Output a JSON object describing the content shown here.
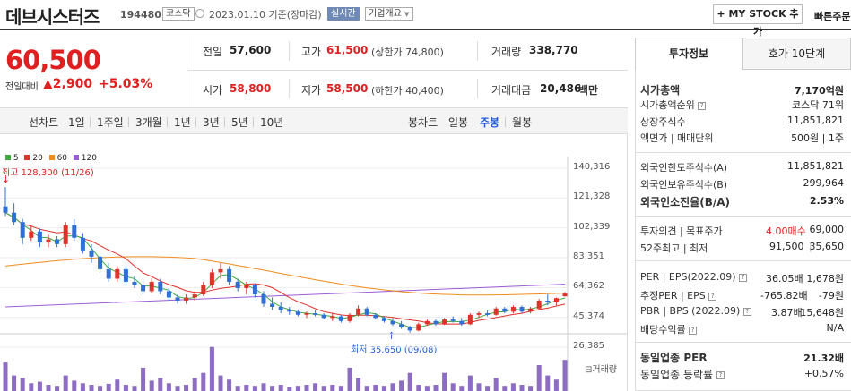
{
  "header": {
    "stock_name": "데브시스터즈",
    "stock_code": "194480",
    "market_badge": "코스닥",
    "date_text": "2023.01.10  기준(장마감)",
    "realtime_label": "실시간",
    "company_info_label": "기업개요",
    "my_stock_label": "MY STOCK 추가",
    "quick_order_label": "빠른주문"
  },
  "summary": {
    "price": "60,500",
    "change_label": "전일대비",
    "change_value": "2,900",
    "change_pct": "+5.03%",
    "prev_label": "전일",
    "prev_value": "57,600",
    "high_label": "고가",
    "high_value": "61,500",
    "high_limit": "(상한가 74,800)",
    "volume_label": "거래량",
    "volume_value": "338,770",
    "open_label": "시가",
    "open_value": "58,800",
    "low_label": "저가",
    "low_value": "58,500",
    "low_limit": "(하한가 40,400)",
    "amount_label": "거래대금",
    "amount_value": "20,486",
    "amount_unit": "백만"
  },
  "period_bar": {
    "line_chart": "선차트",
    "periods": [
      "1일",
      "1주일",
      "3개월",
      "1년",
      "3년",
      "5년",
      "10년"
    ],
    "candle_chart": "봉차트",
    "candle_periods": [
      "일봉",
      "주봉",
      "월봉"
    ],
    "selected_candle": "주봉"
  },
  "chart_data": {
    "type": "candlestick",
    "legend": [
      {
        "name": "5",
        "color": "#3cab3c"
      },
      {
        "name": "20",
        "color": "#e0322a"
      },
      {
        "name": "60",
        "color": "#f08c1e"
      },
      {
        "name": "120",
        "color": "#9c5cd8"
      }
    ],
    "y_ticks": [
      "140,316",
      "121,328",
      "102,339",
      "83,351",
      "64,362",
      "45,374",
      "26,385"
    ],
    "ylim": [
      26385,
      140316
    ],
    "high_annotation": "최고 128,300 (11/26)",
    "low_annotation": "최저 35,650 (09/08)",
    "volume_label": "거래량",
    "candles": [
      [
        116000,
        128300,
        110000,
        112000
      ],
      [
        112000,
        118000,
        104000,
        106000
      ],
      [
        106000,
        108000,
        92000,
        96000
      ],
      [
        96000,
        104000,
        94000,
        100000
      ],
      [
        100000,
        102000,
        90000,
        93000
      ],
      [
        93000,
        98000,
        90000,
        95000
      ],
      [
        95000,
        97000,
        90000,
        92000
      ],
      [
        92000,
        106000,
        90000,
        104000
      ],
      [
        104000,
        108000,
        94000,
        96000
      ],
      [
        96000,
        99000,
        86000,
        88000
      ],
      [
        88000,
        92000,
        80000,
        84000
      ],
      [
        84000,
        86000,
        74000,
        76000
      ],
      [
        76000,
        80000,
        68000,
        70000
      ],
      [
        70000,
        78000,
        68000,
        76000
      ],
      [
        76000,
        78000,
        66000,
        68000
      ],
      [
        68000,
        72000,
        64000,
        66000
      ],
      [
        66000,
        70000,
        60000,
        62000
      ],
      [
        62000,
        70000,
        61000,
        68000
      ],
      [
        68000,
        70000,
        60000,
        62000
      ],
      [
        62000,
        64000,
        56000,
        58000
      ],
      [
        58000,
        60000,
        54000,
        56000
      ],
      [
        56000,
        60000,
        54000,
        58000
      ],
      [
        58000,
        62000,
        56000,
        60000
      ],
      [
        60000,
        68000,
        59000,
        66000
      ],
      [
        66000,
        76000,
        64000,
        74000
      ],
      [
        74000,
        80000,
        70000,
        76000
      ],
      [
        76000,
        78000,
        66000,
        68000
      ],
      [
        68000,
        70000,
        62000,
        64000
      ],
      [
        64000,
        68000,
        60000,
        66000
      ],
      [
        66000,
        67000,
        58000,
        60000
      ],
      [
        60000,
        62000,
        52000,
        54000
      ],
      [
        54000,
        58000,
        50000,
        52000
      ],
      [
        52000,
        55000,
        48000,
        50000
      ],
      [
        50000,
        52000,
        47000,
        49000
      ],
      [
        49000,
        50000,
        46000,
        47000
      ],
      [
        47000,
        49000,
        45000,
        48000
      ],
      [
        48000,
        50000,
        46000,
        47000
      ],
      [
        47000,
        48000,
        44000,
        45000
      ],
      [
        45000,
        48000,
        43000,
        46000
      ],
      [
        46000,
        47000,
        42000,
        43000
      ],
      [
        43000,
        48000,
        42000,
        47000
      ],
      [
        47000,
        53000,
        46000,
        51000
      ],
      [
        51000,
        52000,
        46000,
        47000
      ],
      [
        47000,
        48000,
        44000,
        45000
      ],
      [
        45000,
        46000,
        42000,
        43000
      ],
      [
        43000,
        45000,
        40000,
        41000
      ],
      [
        41000,
        43000,
        38000,
        39000
      ],
      [
        39000,
        40000,
        35650,
        37000
      ],
      [
        37000,
        42000,
        36500,
        41000
      ],
      [
        41000,
        44000,
        40000,
        43000
      ],
      [
        43000,
        44000,
        40000,
        41000
      ],
      [
        41000,
        45000,
        40500,
        44000
      ],
      [
        44000,
        46000,
        42000,
        43000
      ],
      [
        43000,
        45000,
        40000,
        41000
      ],
      [
        41000,
        48000,
        40500,
        47000
      ],
      [
        47000,
        49000,
        45000,
        48000
      ],
      [
        48000,
        50000,
        46000,
        47000
      ],
      [
        47000,
        52000,
        46500,
        51000
      ],
      [
        51000,
        52000,
        48000,
        49000
      ],
      [
        49000,
        53000,
        48000,
        52000
      ],
      [
        52000,
        53000,
        48000,
        49000
      ],
      [
        49000,
        52000,
        48000,
        51000
      ],
      [
        51000,
        57000,
        50000,
        56000
      ],
      [
        56000,
        60000,
        53000,
        55000
      ],
      [
        55000,
        58000,
        53000,
        57600
      ],
      [
        58800,
        61500,
        58500,
        60500
      ]
    ],
    "volumes": [
      0.55,
      0.3,
      0.25,
      0.15,
      0.18,
      0.12,
      0.1,
      0.3,
      0.2,
      0.15,
      0.12,
      0.1,
      0.14,
      0.22,
      0.12,
      0.1,
      0.45,
      0.2,
      0.25,
      0.15,
      0.1,
      0.12,
      0.25,
      0.35,
      0.85,
      0.3,
      0.22,
      0.1,
      0.12,
      0.1,
      0.15,
      0.1,
      0.12,
      0.08,
      0.1,
      0.12,
      0.15,
      0.1,
      0.12,
      0.1,
      0.45,
      0.25,
      0.1,
      0.12,
      0.1,
      0.15,
      0.2,
      0.35,
      0.12,
      0.1,
      0.12,
      0.35,
      0.15,
      0.1,
      0.3,
      0.15,
      0.1,
      0.25,
      0.1,
      0.15,
      0.12,
      0.1,
      0.5,
      0.3,
      0.22,
      0.6
    ]
  },
  "tabs": {
    "invest_info": "투자정보",
    "hoga": "호가 10단계"
  },
  "invest": {
    "market_cap_label": "시가총액",
    "market_cap_value": "7,170억원",
    "rank_label": "시가총액순위",
    "rank_value": "코스닥 71위",
    "shares_label": "상장주식수",
    "shares_value": "11,851,821",
    "par_label": "액면가 | 매매단위",
    "par_value": "500원 | 1주",
    "foreign_limit_label": "외국인한도주식수(A)",
    "foreign_limit_value": "11,851,821",
    "foreign_hold_label": "외국인보유주식수(B)",
    "foreign_hold_value": "299,964",
    "foreign_ratio_label": "외국인소진율(B/A)",
    "foreign_ratio_value": "2.53%",
    "opinion_label": "투자의견 | 목표주가",
    "opinion_value": "4.00매수",
    "target_value": "69,000",
    "week52_label": "52주최고 | 최저",
    "week52_high": "91,500",
    "week52_low": "35,650",
    "per_label": "PER | EPS(2022.09)",
    "per_value": "36.05배",
    "eps_value": "1,678원",
    "est_per_label": "추정PER | EPS",
    "est_per_value": "-765.82배",
    "est_eps_value": "-79원",
    "pbr_label": "PBR | BPS (2022.09)",
    "pbr_value": "3.87배",
    "bps_value": "15,648원",
    "div_label": "배당수익률",
    "div_value": "N/A",
    "sector_per_label": "동일업종 PER",
    "sector_per_value": "21.32배",
    "sector_rate_label": "동일업종 등락률",
    "sector_rate_value": "+0.57%"
  }
}
